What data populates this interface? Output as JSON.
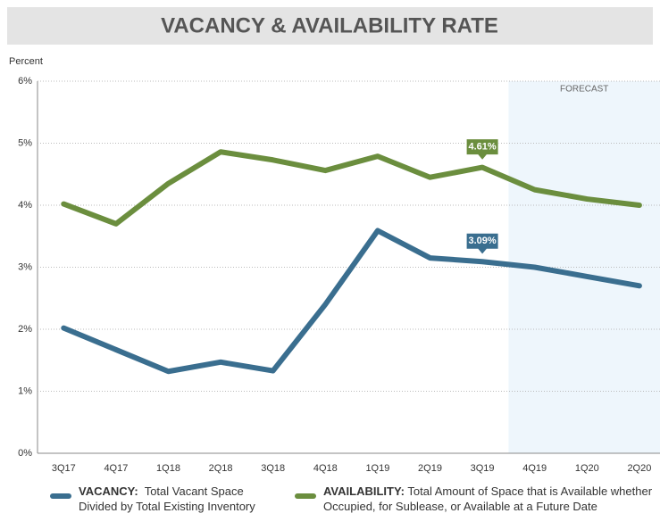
{
  "chart_data": {
    "type": "line",
    "title": "VACANCY & AVAILABILITY RATE",
    "y_label": "Percent",
    "categories": [
      "3Q17",
      "4Q17",
      "1Q18",
      "2Q18",
      "3Q18",
      "4Q18",
      "1Q19",
      "2Q19",
      "3Q19",
      "4Q19",
      "1Q20",
      "2Q20"
    ],
    "series": [
      {
        "name": "VACANCY:",
        "description": "Total Vacant Space Divided by Total Existing Inventory",
        "color": "#3a6e8f",
        "values": [
          2.02,
          1.67,
          1.32,
          1.47,
          1.33,
          2.4,
          3.59,
          3.15,
          3.09,
          3.0,
          2.85,
          2.7
        ],
        "value_labels": [
          null,
          null,
          null,
          null,
          null,
          null,
          null,
          null,
          "3.09%",
          null,
          null,
          null
        ]
      },
      {
        "name": "AVAILABILITY:",
        "description": "Total Amount of Space that is Available whether Occupied, for Sublease, or Available at a Future Date",
        "color": "#6b8e3e",
        "values": [
          4.02,
          3.7,
          4.35,
          4.86,
          4.73,
          4.56,
          4.79,
          4.45,
          4.61,
          4.25,
          4.1,
          4.0
        ],
        "value_labels": [
          null,
          null,
          null,
          null,
          null,
          null,
          null,
          null,
          "4.61%",
          null,
          null,
          null
        ]
      }
    ],
    "forecast": {
      "label": "FORECAST",
      "start": "4Q19"
    },
    "ylim": [
      0,
      6
    ],
    "yticks": [
      {
        "value": 0,
        "label": "0%"
      },
      {
        "value": 1,
        "label": "1%"
      },
      {
        "value": 2,
        "label": "2%"
      },
      {
        "value": 3,
        "label": "3%"
      },
      {
        "value": 4,
        "label": "4%"
      },
      {
        "value": 5,
        "label": "5%"
      },
      {
        "value": 6,
        "label": "6%"
      }
    ],
    "grid": true
  }
}
